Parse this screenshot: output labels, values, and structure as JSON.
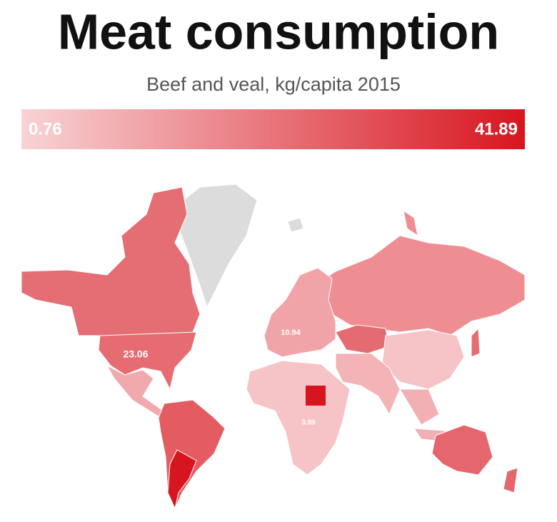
{
  "title": "Meat consumption",
  "subtitle": "Beef and veal, kg/capita 2015",
  "legend": {
    "min": 0.76,
    "max": 41.89,
    "min_color": "#f9d3d5",
    "max_color": "#d7151f"
  },
  "map_labels": [
    23.06,
    10.94,
    3.99
  ],
  "no_data_color": "#dcdcdc"
}
